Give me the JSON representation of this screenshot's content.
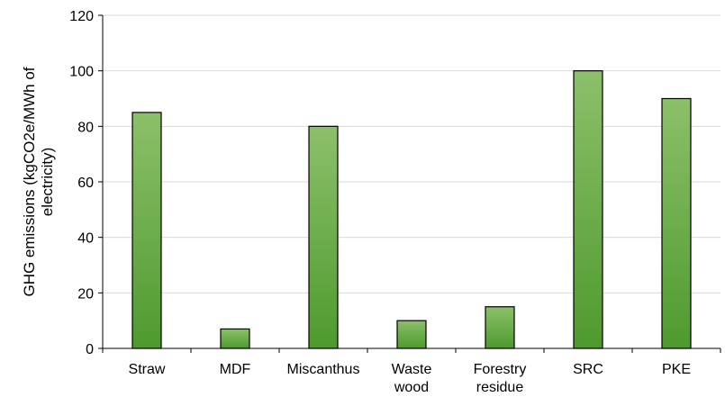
{
  "chart_data": {
    "type": "bar",
    "categories": [
      [
        "Straw"
      ],
      [
        "MDF"
      ],
      [
        "Miscanthus"
      ],
      [
        "Waste",
        "wood"
      ],
      [
        "Forestry",
        "residue"
      ],
      [
        "SRC"
      ],
      [
        "PKE"
      ]
    ],
    "values": [
      85,
      7,
      80,
      10,
      15,
      100,
      90
    ],
    "title": "",
    "xlabel": "",
    "ylabel": [
      "GHG emissions (kgCO2e/MWh of",
      "electricity)"
    ],
    "ylim": [
      0,
      120
    ],
    "yticks": [
      0,
      20,
      40,
      60,
      80,
      100,
      120
    ],
    "grid": true,
    "legend": "none",
    "colors": {
      "bar_top": "#8cc06a",
      "bar_bottom": "#4e9a2e",
      "bar_stroke": "#000000",
      "grid": "#d9d9d9",
      "axis": "#000000"
    }
  }
}
